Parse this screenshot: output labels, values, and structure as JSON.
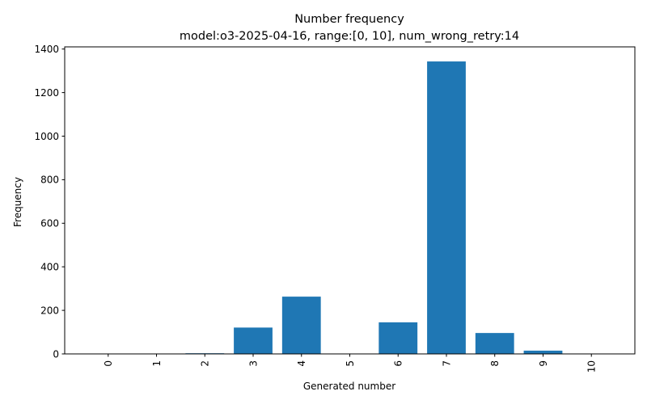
{
  "chart_data": {
    "type": "bar",
    "title": "Number frequency",
    "subtitle": "model:o3-2025-04-16, range:[0, 10], num_wrong_retry:14",
    "xlabel": "Generated number",
    "ylabel": "Frequency",
    "categories": [
      "0",
      "1",
      "2",
      "3",
      "4",
      "5",
      "6",
      "7",
      "8",
      "9",
      "10"
    ],
    "values": [
      0,
      0,
      3,
      121,
      263,
      0,
      145,
      1343,
      96,
      15,
      0
    ],
    "ylim": [
      0,
      1410
    ],
    "yticks": [
      0,
      200,
      400,
      600,
      800,
      1000,
      1200,
      1400
    ],
    "bar_color": "#1f77b4",
    "grid": false,
    "xtick_rotation": "vertical"
  }
}
